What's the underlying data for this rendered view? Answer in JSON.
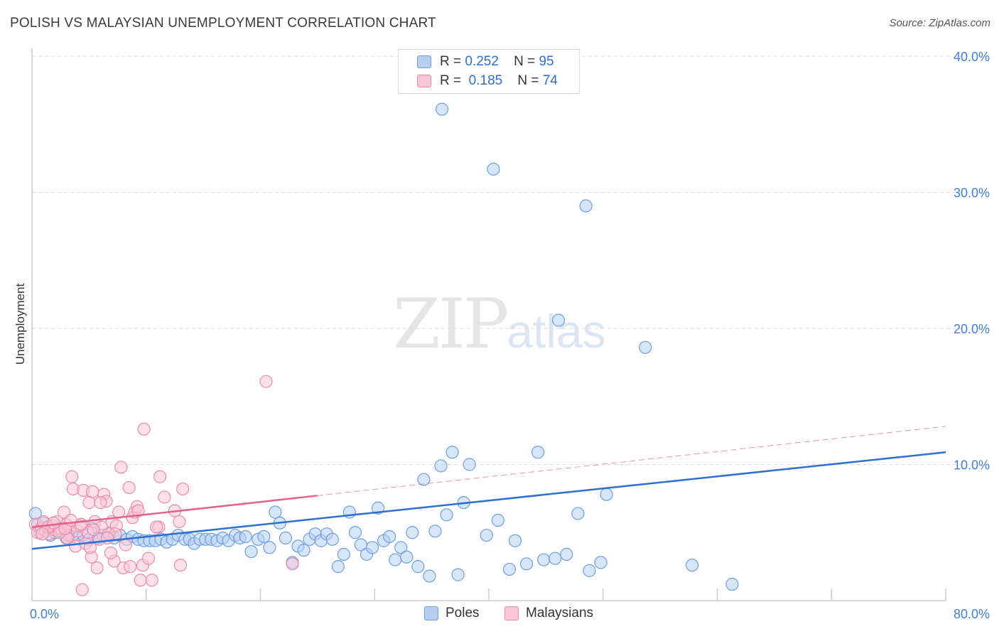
{
  "title": "POLISH VS MALAYSIAN UNEMPLOYMENT CORRELATION CHART",
  "source": "Source: ZipAtlas.com",
  "watermark": {
    "zip": "ZIP",
    "atlas": "atlas"
  },
  "legend": {
    "poles": {
      "r_label": "R =",
      "r_value": "0.252",
      "n_label": "N =",
      "n_value": "95"
    },
    "malaysians": {
      "r_label": "R =",
      "r_value": "0.185",
      "n_label": "N =",
      "n_value": "74"
    }
  },
  "bottom_legend": {
    "poles": "Poles",
    "malaysians": "Malaysians"
  },
  "colors": {
    "poles_fill": "#b7d0f2",
    "poles_stroke": "#6b9fe0",
    "poles_line": "#2e6fd1",
    "malay_fill": "#f9c6d6",
    "malay_stroke": "#ea8aaa",
    "malay_line": "#e0628e",
    "grid": "#dddddd",
    "axis": "#cccccc",
    "tick_text": "#3f7fd6"
  },
  "chart_data": {
    "type": "scatter",
    "title": "POLISH VS MALAYSIAN UNEMPLOYMENT CORRELATION CHART",
    "xlabel": "",
    "ylabel": "Unemployment",
    "xlim": [
      0,
      80
    ],
    "ylim": [
      0,
      40
    ],
    "x_tick_labels": [
      {
        "value": 0,
        "label": "0.0%"
      },
      {
        "value": 80,
        "label": "80.0%"
      }
    ],
    "y_tick_labels": [
      {
        "value": 10,
        "label": "10.0%"
      },
      {
        "value": 20,
        "label": "20.0%"
      },
      {
        "value": 30,
        "label": "30.0%"
      },
      {
        "value": 40,
        "label": "40.0%"
      }
    ],
    "y_gridlines": [
      10,
      20,
      30,
      40
    ],
    "series": [
      {
        "name": "Poles",
        "r": 0.252,
        "n": 95,
        "trend": {
          "x0": 0,
          "y0": 3.8,
          "x1": 80,
          "y1": 10.9,
          "dashed_from": null
        },
        "points": [
          [
            0.3,
            6.4
          ],
          [
            0.5,
            5.6
          ],
          [
            0.7,
            5.0
          ],
          [
            1.0,
            5.7
          ],
          [
            1.3,
            5.2
          ],
          [
            1.6,
            4.8
          ],
          [
            2.0,
            5.0
          ],
          [
            2.5,
            5.1
          ],
          [
            3.0,
            4.6
          ],
          [
            3.5,
            4.7
          ],
          [
            4.0,
            4.6
          ],
          [
            4.5,
            4.8
          ],
          [
            5.0,
            4.5
          ],
          [
            5.3,
            5.3
          ],
          [
            5.8,
            4.6
          ],
          [
            6.2,
            4.8
          ],
          [
            6.8,
            4.9
          ],
          [
            7.2,
            4.6
          ],
          [
            7.7,
            4.8
          ],
          [
            8.3,
            4.5
          ],
          [
            8.8,
            4.7
          ],
          [
            9.3,
            4.5
          ],
          [
            9.8,
            4.4
          ],
          [
            10.3,
            4.4
          ],
          [
            10.8,
            4.4
          ],
          [
            11.3,
            4.5
          ],
          [
            11.8,
            4.3
          ],
          [
            12.3,
            4.5
          ],
          [
            12.8,
            4.8
          ],
          [
            13.4,
            4.5
          ],
          [
            13.8,
            4.5
          ],
          [
            14.2,
            4.2
          ],
          [
            14.7,
            4.5
          ],
          [
            15.2,
            4.5
          ],
          [
            15.7,
            4.5
          ],
          [
            16.2,
            4.4
          ],
          [
            16.7,
            4.6
          ],
          [
            17.2,
            4.4
          ],
          [
            17.8,
            4.8
          ],
          [
            18.2,
            4.6
          ],
          [
            18.7,
            4.7
          ],
          [
            19.2,
            3.6
          ],
          [
            19.8,
            4.5
          ],
          [
            20.3,
            4.7
          ],
          [
            20.8,
            3.9
          ],
          [
            21.3,
            6.5
          ],
          [
            21.7,
            5.7
          ],
          [
            22.2,
            4.6
          ],
          [
            22.8,
            2.8
          ],
          [
            23.3,
            4.0
          ],
          [
            23.8,
            3.7
          ],
          [
            24.3,
            4.5
          ],
          [
            24.8,
            4.9
          ],
          [
            25.3,
            4.4
          ],
          [
            25.8,
            4.9
          ],
          [
            26.3,
            4.5
          ],
          [
            26.8,
            2.5
          ],
          [
            27.3,
            3.4
          ],
          [
            27.8,
            6.5
          ],
          [
            28.3,
            5.0
          ],
          [
            28.8,
            4.1
          ],
          [
            29.3,
            3.4
          ],
          [
            29.8,
            3.9
          ],
          [
            30.3,
            6.8
          ],
          [
            30.8,
            4.4
          ],
          [
            31.3,
            4.7
          ],
          [
            31.8,
            3.0
          ],
          [
            32.3,
            3.9
          ],
          [
            32.8,
            3.2
          ],
          [
            33.3,
            5.0
          ],
          [
            33.8,
            2.5
          ],
          [
            34.3,
            8.9
          ],
          [
            34.8,
            1.8
          ],
          [
            35.3,
            5.1
          ],
          [
            35.8,
            9.9
          ],
          [
            36.3,
            6.3
          ],
          [
            36.8,
            10.9
          ],
          [
            37.3,
            1.9
          ],
          [
            37.8,
            7.2
          ],
          [
            38.3,
            10.0
          ],
          [
            39.8,
            4.8
          ],
          [
            40.8,
            5.9
          ],
          [
            41.8,
            2.3
          ],
          [
            42.3,
            4.4
          ],
          [
            43.3,
            2.7
          ],
          [
            44.3,
            10.9
          ],
          [
            44.8,
            3.0
          ],
          [
            45.8,
            3.1
          ],
          [
            46.8,
            3.4
          ],
          [
            47.8,
            6.4
          ],
          [
            48.8,
            2.2
          ],
          [
            49.8,
            2.8
          ],
          [
            50.3,
            7.8
          ],
          [
            57.8,
            2.6
          ],
          [
            61.3,
            1.2
          ],
          [
            35.9,
            36.1
          ],
          [
            40.4,
            31.7
          ],
          [
            48.5,
            29.0
          ],
          [
            46.1,
            20.6
          ],
          [
            53.7,
            18.6
          ]
        ]
      },
      {
        "name": "Malaysians",
        "r": 0.185,
        "n": 74,
        "trend": {
          "x0": 0,
          "y0": 5.4,
          "x1": 80,
          "y1": 12.8,
          "dashed_from": 25
        },
        "points": [
          [
            0.3,
            5.6
          ],
          [
            0.5,
            5.0
          ],
          [
            0.8,
            5.3
          ],
          [
            1.0,
            5.8
          ],
          [
            1.2,
            5.1
          ],
          [
            1.5,
            4.9
          ],
          [
            1.8,
            5.5
          ],
          [
            2.0,
            5.2
          ],
          [
            2.2,
            5.8
          ],
          [
            2.5,
            5.3
          ],
          [
            2.8,
            6.5
          ],
          [
            3.0,
            5.6
          ],
          [
            3.2,
            4.8
          ],
          [
            3.5,
            9.1
          ],
          [
            3.6,
            8.2
          ],
          [
            3.8,
            4.0
          ],
          [
            4.0,
            5.1
          ],
          [
            4.2,
            5.5
          ],
          [
            4.5,
            8.1
          ],
          [
            4.7,
            4.2
          ],
          [
            4.9,
            5.0
          ],
          [
            5.0,
            7.2
          ],
          [
            5.2,
            3.2
          ],
          [
            5.3,
            8.0
          ],
          [
            5.5,
            5.8
          ],
          [
            5.7,
            2.4
          ],
          [
            5.9,
            4.5
          ],
          [
            6.1,
            5.4
          ],
          [
            6.3,
            7.8
          ],
          [
            6.5,
            7.3
          ],
          [
            6.7,
            4.9
          ],
          [
            7.0,
            5.8
          ],
          [
            7.2,
            2.9
          ],
          [
            7.4,
            5.5
          ],
          [
            7.6,
            6.5
          ],
          [
            7.8,
            9.8
          ],
          [
            8.0,
            2.4
          ],
          [
            8.2,
            4.1
          ],
          [
            8.5,
            8.3
          ],
          [
            8.8,
            6.1
          ],
          [
            9.0,
            6.5
          ],
          [
            9.2,
            6.9
          ],
          [
            9.5,
            1.5
          ],
          [
            9.7,
            2.6
          ],
          [
            9.8,
            12.6
          ],
          [
            10.2,
            3.1
          ],
          [
            10.5,
            1.5
          ],
          [
            11.1,
            5.4
          ],
          [
            11.2,
            9.1
          ],
          [
            11.6,
            7.6
          ],
          [
            12.5,
            6.6
          ],
          [
            13.0,
            2.6
          ],
          [
            13.2,
            8.2
          ],
          [
            20.5,
            16.1
          ],
          [
            22.8,
            2.7
          ],
          [
            4.4,
            0.8
          ],
          [
            3.1,
            4.6
          ],
          [
            2.4,
            5.0
          ],
          [
            1.4,
            5.4
          ],
          [
            6.9,
            3.5
          ],
          [
            8.6,
            2.5
          ],
          [
            10.9,
            5.4
          ],
          [
            12.9,
            5.8
          ],
          [
            7.3,
            4.9
          ],
          [
            5.1,
            3.9
          ],
          [
            6.0,
            7.2
          ],
          [
            9.3,
            6.6
          ],
          [
            0.9,
            4.9
          ],
          [
            1.9,
            5.7
          ],
          [
            2.9,
            5.3
          ],
          [
            3.4,
            5.9
          ],
          [
            4.3,
            5.6
          ],
          [
            5.4,
            5.2
          ],
          [
            6.6,
            4.6
          ]
        ]
      }
    ]
  }
}
